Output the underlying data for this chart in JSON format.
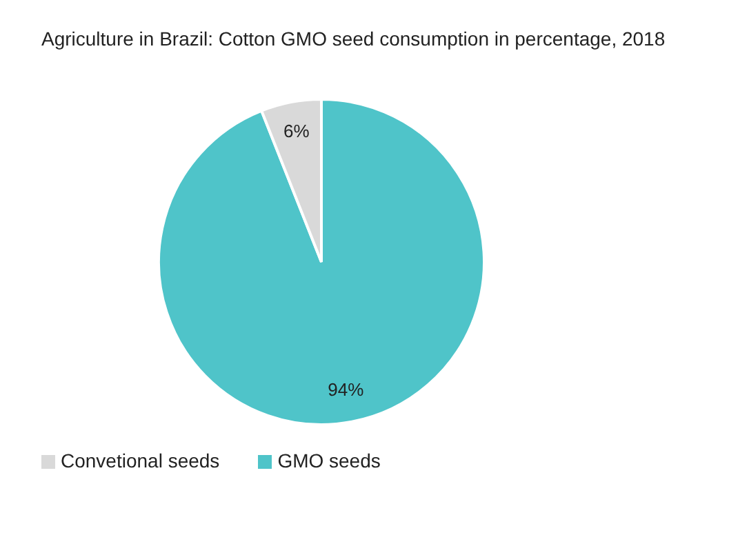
{
  "chart_data": {
    "type": "pie",
    "title": "Agriculture in Brazil: Cotton GMO seed consumption in percentage, 2018",
    "categories": [
      "GMO seeds",
      "Convetional seeds"
    ],
    "values": [
      94,
      6
    ],
    "value_labels": [
      "94%",
      "6%"
    ],
    "colors": [
      "#4fc4c9",
      "#d9d9d9"
    ],
    "legend": "bottom left"
  }
}
